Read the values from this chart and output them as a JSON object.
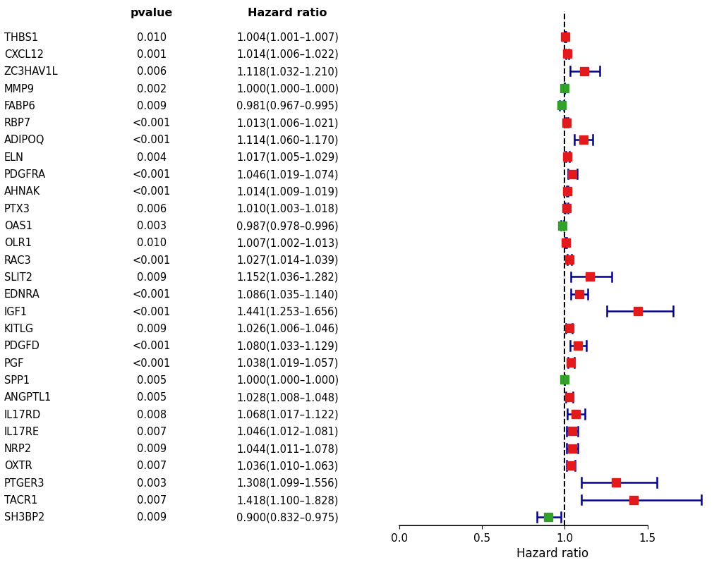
{
  "genes": [
    "THBS1",
    "CXCL12",
    "ZC3HAV1L",
    "MMP9",
    "FABP6",
    "RBP7",
    "ADIPOQ",
    "ELN",
    "PDGFRA",
    "AHNAK",
    "PTX3",
    "OAS1",
    "OLR1",
    "RAC3",
    "SLIT2",
    "EDNRA",
    "IGF1",
    "KITLG",
    "PDGFD",
    "PGF",
    "SPP1",
    "ANGPTL1",
    "IL17RD",
    "IL17RE",
    "NRP2",
    "OXTR",
    "PTGER3",
    "TACR1",
    "SH3BP2"
  ],
  "pvalues": [
    "0.010",
    "0.001",
    "0.006",
    "0.002",
    "0.009",
    "<0.001",
    "<0.001",
    "0.004",
    "<0.001",
    "<0.001",
    "0.006",
    "0.003",
    "0.010",
    "<0.001",
    "0.009",
    "<0.001",
    "<0.001",
    "0.009",
    "<0.001",
    "<0.001",
    "0.005",
    "0.005",
    "0.008",
    "0.007",
    "0.009",
    "0.007",
    "0.003",
    "0.007",
    "0.009"
  ],
  "hr_labels": [
    "1.004(1.001–1.007)",
    "1.014(1.006–1.022)",
    "1.118(1.032–1.210)",
    "1.000(1.000–1.000)",
    "0.981(0.967–0.995)",
    "1.013(1.006–1.021)",
    "1.114(1.060–1.170)",
    "1.017(1.005–1.029)",
    "1.046(1.019–1.074)",
    "1.014(1.009–1.019)",
    "1.010(1.003–1.018)",
    "0.987(0.978–0.996)",
    "1.007(1.002–1.013)",
    "1.027(1.014–1.039)",
    "1.152(1.036–1.282)",
    "1.086(1.035–1.140)",
    "1.441(1.253–1.656)",
    "1.026(1.006–1.046)",
    "1.080(1.033–1.129)",
    "1.038(1.019–1.057)",
    "1.000(1.000–1.000)",
    "1.028(1.008–1.048)",
    "1.068(1.017–1.122)",
    "1.046(1.012–1.081)",
    "1.044(1.011–1.078)",
    "1.036(1.010–1.063)",
    "1.308(1.099–1.556)",
    "1.418(1.100–1.828)",
    "0.900(0.832–0.975)"
  ],
  "hr": [
    1.004,
    1.014,
    1.118,
    1.0,
    0.981,
    1.013,
    1.114,
    1.017,
    1.046,
    1.014,
    1.01,
    0.987,
    1.007,
    1.027,
    1.152,
    1.086,
    1.441,
    1.026,
    1.08,
    1.038,
    1.0,
    1.028,
    1.068,
    1.046,
    1.044,
    1.036,
    1.308,
    1.418,
    0.9
  ],
  "ci_low": [
    1.001,
    1.006,
    1.032,
    1.0,
    0.967,
    1.006,
    1.06,
    1.005,
    1.019,
    1.009,
    1.003,
    0.978,
    1.002,
    1.014,
    1.036,
    1.035,
    1.253,
    1.006,
    1.033,
    1.019,
    1.0,
    1.008,
    1.017,
    1.012,
    1.011,
    1.01,
    1.099,
    1.1,
    0.832
  ],
  "ci_high": [
    1.007,
    1.022,
    1.21,
    1.0,
    0.995,
    1.021,
    1.17,
    1.029,
    1.074,
    1.019,
    1.018,
    0.996,
    1.013,
    1.039,
    1.282,
    1.14,
    1.656,
    1.046,
    1.129,
    1.057,
    1.0,
    1.048,
    1.122,
    1.081,
    1.078,
    1.063,
    1.556,
    1.828,
    0.975
  ],
  "colors": [
    "red",
    "red",
    "red",
    "green",
    "green",
    "red",
    "red",
    "red",
    "red",
    "red",
    "red",
    "green",
    "red",
    "red",
    "red",
    "red",
    "red",
    "red",
    "red",
    "red",
    "green",
    "red",
    "red",
    "red",
    "red",
    "red",
    "red",
    "red",
    "green"
  ],
  "color_hex": {
    "red": "#e31a1c",
    "green": "#33a02c"
  },
  "dashed_line_x": 1.0,
  "xlim": [
    0.0,
    1.85
  ],
  "xticks": [
    0.0,
    0.5,
    1.0,
    1.5
  ],
  "xticklabels": [
    "0.0",
    "0.5",
    "1.0",
    "1.5"
  ],
  "xlabel": "Hazard ratio",
  "pvalue_header": "pvalue",
  "hr_header": "Hazard ratio",
  "marker_size": 9,
  "ci_linewidth": 1.8,
  "ci_color": "#00008b",
  "cap_size": 0.28,
  "text_fontsize": 10.5,
  "header_fontsize": 11.5
}
